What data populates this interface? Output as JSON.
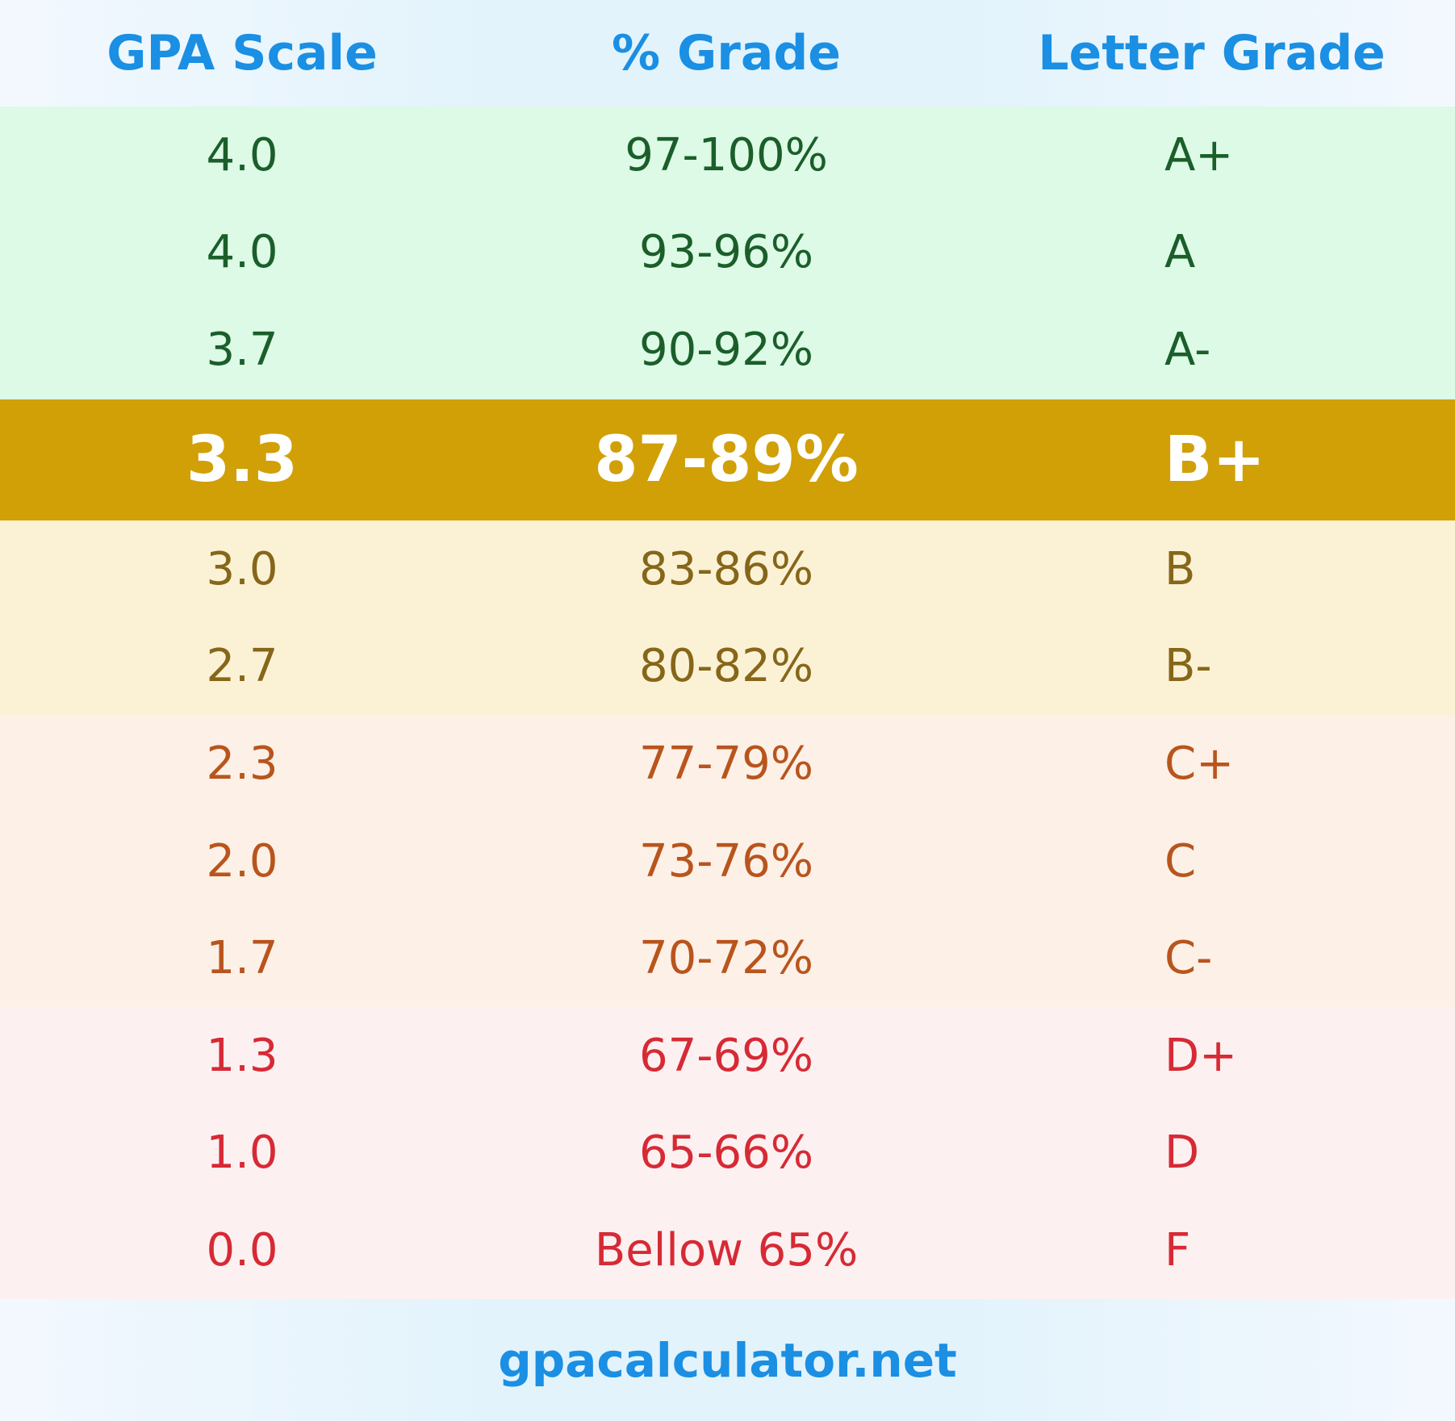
{
  "header": {
    "gpa_scale": "GPA Scale",
    "percent_grade": "% Grade",
    "letter_grade": "Letter Grade"
  },
  "rows": [
    {
      "gpa": "4.0",
      "percent": "97-100%",
      "letter": "A+",
      "group": "green"
    },
    {
      "gpa": "4.0",
      "percent": "93-96%",
      "letter": "A",
      "group": "green"
    },
    {
      "gpa": "3.7",
      "percent": "90-92%",
      "letter": "A-",
      "group": "green"
    },
    {
      "gpa": "3.3",
      "percent": "87-89%",
      "letter": "B+",
      "group": "highlight"
    },
    {
      "gpa": "3.0",
      "percent": "83-86%",
      "letter": "B",
      "group": "yellow"
    },
    {
      "gpa": "2.7",
      "percent": "80-82%",
      "letter": "B-",
      "group": "yellow"
    },
    {
      "gpa": "2.3",
      "percent": "77-79%",
      "letter": "C+",
      "group": "orange"
    },
    {
      "gpa": "2.0",
      "percent": "73-76%",
      "letter": "C",
      "group": "orange"
    },
    {
      "gpa": "1.7",
      "percent": "70-72%",
      "letter": "C-",
      "group": "orange"
    },
    {
      "gpa": "1.3",
      "percent": "67-69%",
      "letter": "D+",
      "group": "red"
    },
    {
      "gpa": "1.0",
      "percent": "65-66%",
      "letter": "D",
      "group": "red"
    },
    {
      "gpa": "0.0",
      "percent": "Bellow 65%",
      "letter": "F",
      "group": "red"
    }
  ],
  "footer": {
    "site": "gpacalculator.net"
  },
  "colors": {
    "header_text": "#1a8fe3",
    "green_bg": "#dcfae6",
    "green_text": "#1b5e2a",
    "highlight_bg": "#d1a007",
    "highlight_text": "#ffffff",
    "yellow_bg": "#fbf2d6",
    "yellow_text": "#866619",
    "orange_bg": "#fdf0e7",
    "orange_text": "#b8551d",
    "red_bg": "#fdf0f1",
    "red_text": "#d62a35"
  }
}
